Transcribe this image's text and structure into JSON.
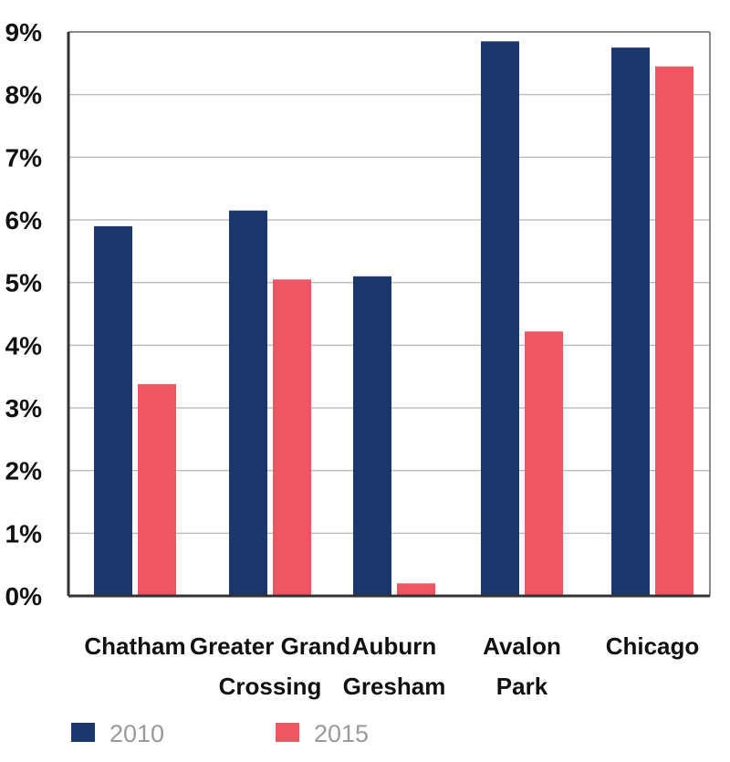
{
  "chart_data": {
    "type": "bar",
    "categories": [
      [
        "Chatham"
      ],
      [
        "Greater Grand",
        "Crossing"
      ],
      [
        "Auburn",
        "Gresham"
      ],
      [
        "Avalon",
        "Park"
      ],
      [
        "Chicago"
      ]
    ],
    "series": [
      {
        "name": "2010",
        "color": "#1b376b",
        "values": [
          5.9,
          6.15,
          5.1,
          8.85,
          8.75
        ]
      },
      {
        "name": "2015",
        "color": "#ef5563",
        "values": [
          3.38,
          5.05,
          0.2,
          4.22,
          8.45
        ]
      }
    ],
    "yticks": [
      "0%",
      "1%",
      "2%",
      "3%",
      "4%",
      "5%",
      "6%",
      "7%",
      "8%",
      "9%"
    ],
    "ylim": [
      0,
      9
    ],
    "grid": true,
    "legend": "bottom-left"
  }
}
